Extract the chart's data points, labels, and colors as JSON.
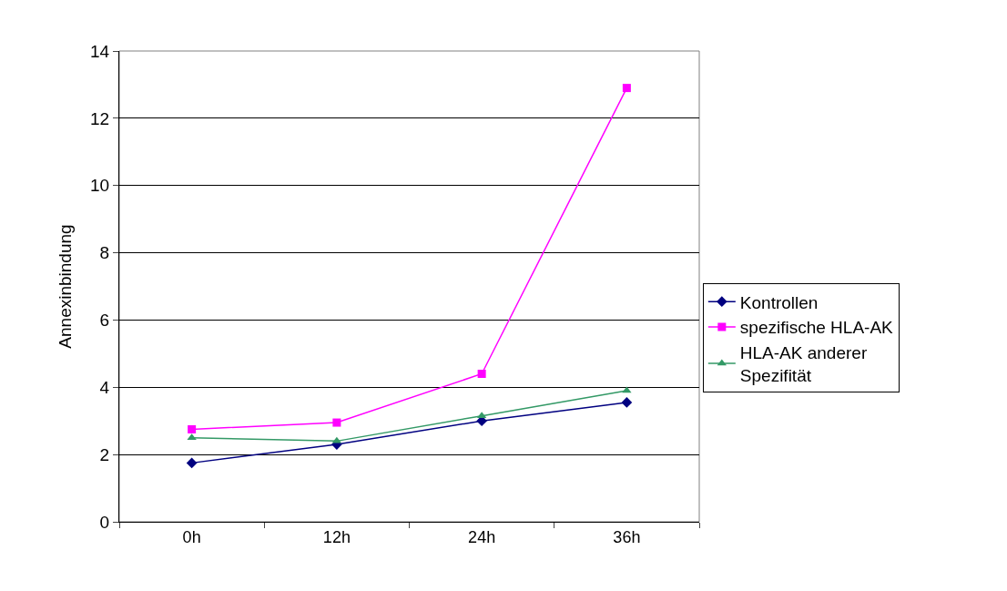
{
  "chart_data": {
    "type": "line",
    "ylabel": "Annexinbindung",
    "categories": [
      "0h",
      "12h",
      "24h",
      "36h"
    ],
    "series": [
      {
        "name": "Kontrollen",
        "color": "#000080",
        "marker": "diamond",
        "values": [
          1.75,
          2.3,
          3.0,
          3.55
        ]
      },
      {
        "name": "spezifische HLA-AK",
        "color": "#ff00ff",
        "marker": "square",
        "values": [
          2.75,
          2.95,
          4.4,
          12.9
        ]
      },
      {
        "name": "HLA-AK anderer Spezifität",
        "color": "#339966",
        "marker": "triangle",
        "values": [
          2.5,
          2.4,
          3.15,
          3.9
        ]
      }
    ],
    "ylim": [
      0,
      14
    ],
    "yticks": [
      0,
      2,
      4,
      6,
      8,
      10,
      12,
      14
    ],
    "grid": "y",
    "legend": "right"
  }
}
